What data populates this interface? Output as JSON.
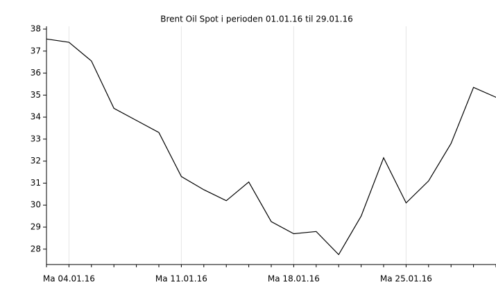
{
  "chart_data": {
    "type": "line",
    "title": "Brent Oil Spot i perioden 01.01.16 til 29.01.16",
    "categories": [
      null,
      "Ma 04.01.16",
      null,
      null,
      null,
      null,
      "Ma 11.01.16",
      null,
      null,
      null,
      null,
      "Ma 18.01.16",
      null,
      null,
      null,
      null,
      "Ma 25.01.16",
      null,
      null,
      null,
      null
    ],
    "series": [
      {
        "name": "Brent Oil Spot",
        "color": "#000000",
        "values": [
          37.55,
          37.4,
          36.55,
          34.4,
          33.85,
          33.3,
          31.3,
          30.7,
          30.2,
          31.05,
          29.25,
          28.7,
          28.8,
          27.75,
          29.5,
          32.15,
          30.1,
          31.1,
          32.8,
          35.35,
          34.9
        ]
      }
    ],
    "ylim": [
      27.3,
      38
    ],
    "yticks": [
      28,
      29,
      30,
      31,
      32,
      33,
      34,
      35,
      36,
      37,
      38
    ],
    "grid": true
  }
}
